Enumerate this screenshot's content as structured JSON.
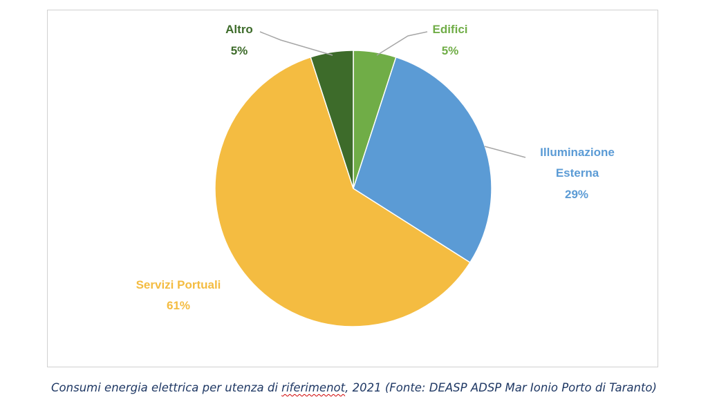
{
  "chart_data": {
    "type": "pie",
    "slices": [
      {
        "label": "Edifici",
        "value": 5,
        "value_label": "5%",
        "color": "#70ad47"
      },
      {
        "label": "Illuminazione Esterna",
        "value": 29,
        "value_label": "29%",
        "color": "#5b9bd5"
      },
      {
        "label": "Servizi Portuali",
        "value": 61,
        "value_label": "61%",
        "color": "#f4bc41"
      },
      {
        "label": "Altro",
        "value": 5,
        "value_label": "5%",
        "color": "#3d6b2a"
      }
    ],
    "label_colors": {
      "Edifici": "#70ad47",
      "Illuminazione Esterna": "#5b9bd5",
      "Servizi Portuali": "#f4bc41",
      "Altro": "#3d6b2a"
    },
    "leader_line_color": "#a6a6a6",
    "frame_border_color": "#d0d0d0"
  },
  "caption": {
    "before": "Consumi energia elettrica per utenza di ",
    "misspelled": "riferimenot",
    "after": ", 2021 (Fonte: DEASP ADSP Mar Ionio Porto di Taranto)",
    "spellcheck_color": "#d00000"
  }
}
